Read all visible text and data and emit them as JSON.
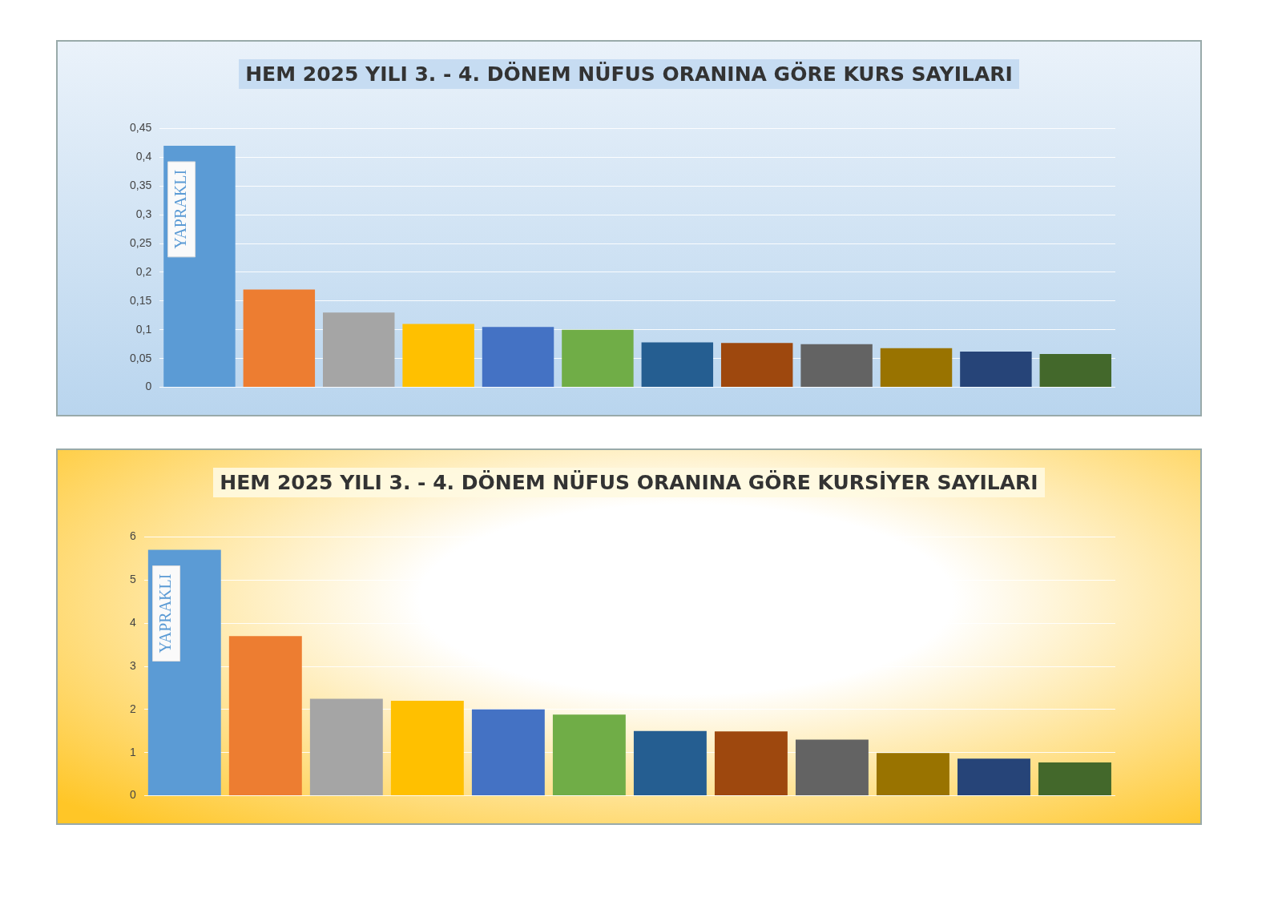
{
  "chart_data": [
    {
      "type": "bar",
      "title": "HEM 2025 YILI 3. - 4. DÖNEM NÜFUS ORANINA GÖRE KURS SAYILARI",
      "categories": [
        "YAPRAKLI",
        null,
        null,
        null,
        null,
        null,
        null,
        null,
        null,
        null,
        null,
        null
      ],
      "values": [
        0.42,
        0.17,
        0.13,
        0.11,
        0.105,
        0.1,
        0.078,
        0.077,
        0.075,
        0.068,
        0.062,
        0.058
      ],
      "colors": [
        "#5b9bd5",
        "#ed7d31",
        "#a5a5a5",
        "#ffc000",
        "#4472c4",
        "#70ad47",
        "#255e91",
        "#9e480e",
        "#636363",
        "#997300",
        "#264478",
        "#43682b"
      ],
      "ylim": [
        0,
        0.45
      ],
      "yticks": [
        {
          "value": 0,
          "label": "0"
        },
        {
          "value": 0.05,
          "label": "0,05"
        },
        {
          "value": 0.1,
          "label": "0,1"
        },
        {
          "value": 0.15,
          "label": "0,15"
        },
        {
          "value": 0.2,
          "label": "0,2"
        },
        {
          "value": 0.25,
          "label": "0,25"
        },
        {
          "value": 0.3,
          "label": "0,3"
        },
        {
          "value": 0.35,
          "label": "0,35"
        },
        {
          "value": 0.4,
          "label": "0,4"
        },
        {
          "value": 0.45,
          "label": "0,45"
        }
      ],
      "grid": "y",
      "tick_labels": "y",
      "legend": false
    },
    {
      "type": "bar",
      "title": "HEM 2025 YILI 3. - 4. DÖNEM NÜFUS ORANINA GÖRE KURSİYER SAYILARI",
      "categories": [
        "YAPRAKLI",
        null,
        null,
        null,
        null,
        null,
        null,
        null,
        null,
        null,
        null,
        null
      ],
      "values": [
        5.7,
        3.7,
        2.25,
        2.2,
        2.0,
        1.88,
        1.5,
        1.49,
        1.3,
        0.99,
        0.86,
        0.77
      ],
      "colors": [
        "#5b9bd5",
        "#ed7d31",
        "#a5a5a5",
        "#ffc000",
        "#4472c4",
        "#70ad47",
        "#255e91",
        "#9e480e",
        "#636363",
        "#997300",
        "#264478",
        "#43682b"
      ],
      "ylim": [
        0,
        6
      ],
      "yticks": [
        0,
        1,
        2,
        3,
        4,
        5,
        6
      ],
      "grid": "y",
      "tick_labels": "y",
      "legend": false
    }
  ]
}
